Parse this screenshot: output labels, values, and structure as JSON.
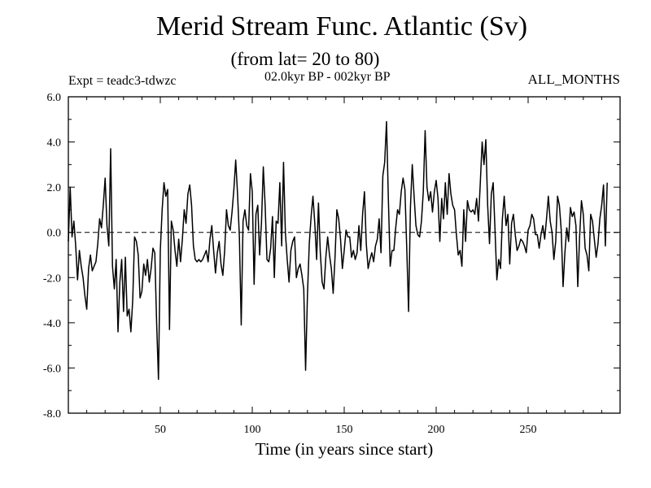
{
  "chart_data": {
    "type": "line",
    "title": "Merid Stream Func. Atlantic (Sv)",
    "subtitle": "(from lat= 20 to 80)",
    "annotation_left": "Expt = teadc3-tdwzc",
    "annotation_center": "02.0kyr BP - 002kyr BP",
    "annotation_right": "ALL_MONTHS",
    "xlabel": "Time (in years since start)",
    "ylabel": "",
    "xlim": [
      0,
      300
    ],
    "ylim": [
      -8,
      6
    ],
    "x_ticks": [
      50,
      100,
      150,
      200,
      250
    ],
    "x_tick_labels": [
      "50",
      "100",
      "150",
      "200",
      "250"
    ],
    "y_ticks": [
      -8,
      -6,
      -4,
      -2,
      0,
      2,
      4,
      6
    ],
    "y_tick_labels": [
      "-8.0",
      "-6.0",
      "-4.0",
      "-2.0",
      "0.0",
      "2.0",
      "4.0",
      "6.0"
    ],
    "reference_line": 0,
    "series": [
      {
        "name": "ALL_MONTHS",
        "x_start": 0,
        "x_step": 1,
        "values": [
          -0.4,
          2.0,
          -0.2,
          0.5,
          -0.6,
          -2.1,
          -0.8,
          -1.5,
          -2.0,
          -2.8,
          -3.4,
          -1.6,
          -1.0,
          -1.7,
          -1.5,
          -1.3,
          -0.5,
          0.6,
          0.2,
          1.2,
          2.4,
          0.3,
          -0.6,
          3.7,
          -1.5,
          -2.5,
          -1.2,
          -4.4,
          -2.2,
          -1.2,
          -3.5,
          -1.1,
          -3.7,
          -3.4,
          -4.4,
          -3.0,
          -0.2,
          -0.4,
          -1.0,
          -2.9,
          -2.6,
          -1.4,
          -1.9,
          -1.2,
          -2.2,
          -1.6,
          -0.7,
          -0.9,
          -4.0,
          -6.5,
          -0.8,
          1.0,
          2.2,
          1.6,
          1.9,
          -4.3,
          0.5,
          0.1,
          -0.8,
          -1.5,
          -0.3,
          -1.3,
          -0.3,
          1.0,
          0.4,
          1.7,
          2.1,
          1.2,
          -0.6,
          -1.2,
          -1.3,
          -1.2,
          -1.3,
          -1.2,
          -1.0,
          -0.8,
          -1.3,
          -0.3,
          0.3,
          -0.8,
          -1.8,
          -0.9,
          -0.4,
          -1.4,
          -1.9,
          -0.8,
          1.0,
          0.3,
          0.1,
          0.9,
          1.9,
          3.2,
          1.7,
          -0.2,
          -4.1,
          0.5,
          1.0,
          0.3,
          0.1,
          2.6,
          1.8,
          -2.3,
          0.8,
          1.2,
          -1.0,
          0.4,
          2.9,
          1.2,
          -1.2,
          -1.3,
          -0.7,
          0.7,
          -2.0,
          0.5,
          0.4,
          2.2,
          -0.6,
          3.1,
          0.0,
          -1.2,
          -2.2,
          -0.8,
          -0.4,
          -0.2,
          -2.0,
          -1.6,
          -1.4,
          -1.9,
          -2.5,
          -6.1,
          -2.8,
          -0.5,
          0.7,
          1.6,
          0.4,
          -1.2,
          1.3,
          -0.9,
          -2.2,
          -2.5,
          -1.1,
          -0.2,
          -1.0,
          -1.6,
          -2.7,
          -1.1,
          1.0,
          0.6,
          -0.3,
          -1.6,
          -0.8,
          0.1,
          -0.2,
          -0.2,
          -1.1,
          -0.8,
          -1.2,
          -0.9,
          0.3,
          -0.8,
          0.8,
          1.8,
          -0.5,
          -1.6,
          -1.2,
          -0.9,
          -1.3,
          -0.6,
          -0.3,
          0.6,
          -0.9,
          2.5,
          3.1,
          4.9,
          1.5,
          -1.5,
          -0.8,
          -0.8,
          0.2,
          1.0,
          0.8,
          1.8,
          2.4,
          1.9,
          -0.7,
          -3.5,
          1.1,
          3.0,
          1.6,
          0.3,
          -0.1,
          -0.2,
          0.5,
          1.8,
          4.5,
          2.0,
          1.4,
          1.8,
          0.9,
          1.8,
          2.3,
          1.5,
          -0.4,
          1.5,
          0.6,
          2.2,
          0.8,
          2.6,
          1.7,
          1.2,
          1.0,
          -0.1,
          -1.0,
          -0.8,
          -1.5,
          1.0,
          -0.4,
          1.4,
          1.0,
          0.9,
          1.0,
          0.8,
          1.5,
          0.5,
          2.2,
          4.0,
          3.0,
          4.1,
          1.2,
          -0.5,
          1.7,
          2.2,
          0.1,
          -2.1,
          -1.2,
          -1.6,
          0.6,
          1.6,
          0.3,
          0.8,
          -1.4,
          0.4,
          0.8,
          -0.1,
          -0.8,
          -0.6,
          -0.3,
          -0.4,
          -0.6,
          -0.9,
          0.1,
          0.3,
          0.8,
          0.6,
          -0.1,
          -0.1,
          -0.7,
          -0.1,
          0.3,
          -0.3,
          0.6,
          1.6,
          0.5,
          0.0,
          -1.2,
          -0.4,
          1.6,
          1.2,
          0.1,
          -2.4,
          -0.9,
          0.2,
          -0.4,
          1.1,
          0.7,
          0.9,
          0.3,
          -2.4,
          -0.2,
          1.4,
          0.8,
          -0.7,
          -1.0,
          -1.7,
          0.8,
          0.5,
          -0.3,
          -1.1,
          -0.5,
          0.6,
          1.2,
          2.1,
          -0.6,
          2.2
        ]
      }
    ]
  },
  "colors": {
    "line": "#000000",
    "frame": "#000000",
    "background": "#ffffff"
  }
}
